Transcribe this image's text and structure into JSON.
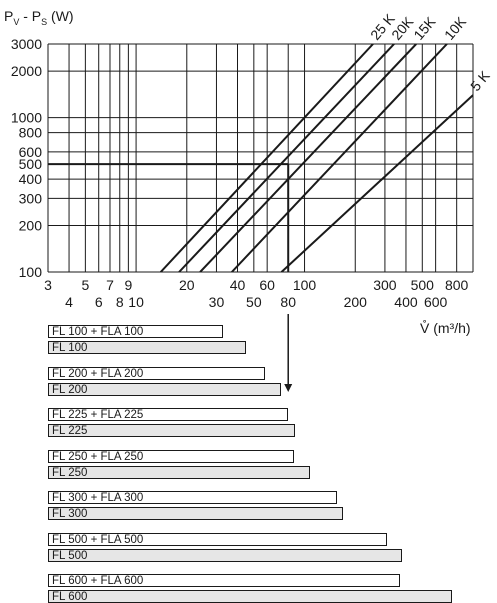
{
  "chart_data": [
    {
      "type": "line",
      "y_axis_title": "P_V - P_S (W)",
      "x_axis_title": "V̊ (m³/h)",
      "x_scale": "log",
      "y_scale": "log",
      "xlim": [
        3,
        1000
      ],
      "ylim": [
        100,
        3000
      ],
      "grid": true,
      "x_ticks": [
        3,
        4,
        5,
        6,
        7,
        8,
        9,
        10,
        20,
        30,
        40,
        50,
        60,
        80,
        100,
        200,
        300,
        400,
        500,
        600,
        800
      ],
      "y_ticks": [
        100,
        200,
        300,
        400,
        500,
        600,
        800,
        1000,
        2000,
        3000
      ],
      "series": [
        {
          "name": "25 K",
          "x": [
            14,
            255
          ],
          "y": [
            100,
            3000
          ]
        },
        {
          "name": "20K",
          "x": [
            18,
            340
          ],
          "y": [
            100,
            3000
          ]
        },
        {
          "name": "15K",
          "x": [
            24,
            460
          ],
          "y": [
            100,
            3000
          ]
        },
        {
          "name": "10K",
          "x": [
            37,
            700
          ],
          "y": [
            100,
            3000
          ]
        },
        {
          "name": "5 K",
          "x": [
            73,
            1000
          ],
          "y": [
            100,
            1400
          ]
        }
      ],
      "reading_example": {
        "power": 500,
        "flow": 80
      }
    },
    {
      "type": "bar",
      "categories": [
        "FL 100 + FLA 100",
        "FL 100",
        "FL 200 + FLA 200",
        "FL 200",
        "FL 225 + FLA 225",
        "FL 225",
        "FL 250 + FLA 250",
        "FL 250",
        "FL 300 + FLA 300",
        "FL 300",
        "FL 500 + FLA 500",
        "FL 500",
        "FL 600 + FLA 600",
        "FL 600"
      ],
      "values": [
        33,
        45,
        58,
        72,
        80,
        88,
        86,
        108,
        155,
        170,
        310,
        380,
        370,
        750
      ],
      "bar_styles": [
        "plain",
        "shaded",
        "plain",
        "shaded",
        "plain",
        "shaded",
        "plain",
        "shaded",
        "plain",
        "shaded",
        "plain",
        "shaded",
        "plain",
        "shaded"
      ],
      "orientation": "horizontal",
      "value_axis": "shared V̊ (m³/h) scale"
    }
  ],
  "colors": {
    "line": "#1a1a1a",
    "grid": "#1a1a1a",
    "bar_fill": "#e6e6e6"
  }
}
